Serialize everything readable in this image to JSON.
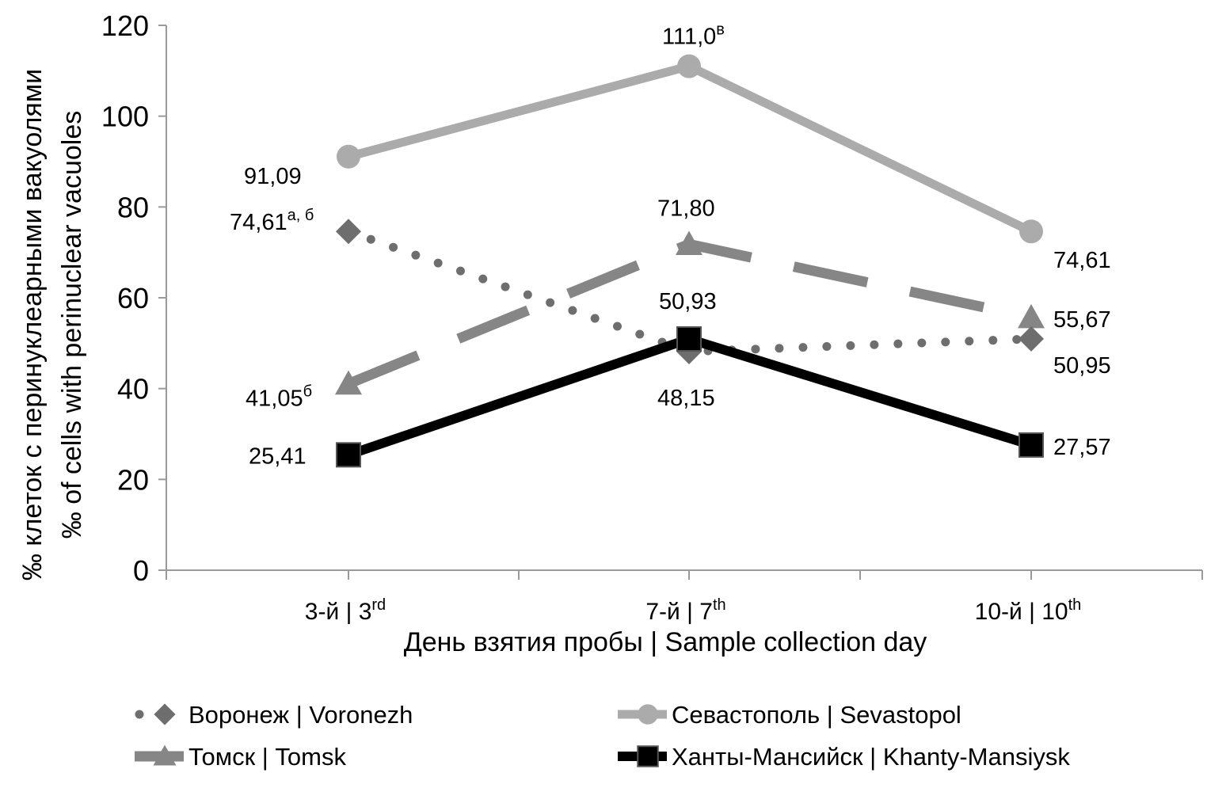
{
  "chart_data": {
    "type": "line",
    "title": "",
    "xlabel": "День взятия пробы | Sample collection day",
    "ylabel_lines": [
      "‰ клеток с перинуклеарными вакуолями",
      "‰ of cells with perinuclear vacuoles"
    ],
    "ylim": [
      0,
      120
    ],
    "yticks": [
      0,
      20,
      40,
      60,
      80,
      100,
      120
    ],
    "grid": false,
    "legend_position": "bottom",
    "categories": [
      {
        "main": "3-й | 3",
        "sup": "rd"
      },
      {
        "main": "7-й | 7",
        "sup": "th"
      },
      {
        "main": "10-й | 10",
        "sup": "th"
      }
    ],
    "series": [
      {
        "name": "Воронеж | Voronezh",
        "values": [
          74.61,
          48.15,
          50.95
        ],
        "color": "#6e6e6e",
        "line_style": "dotted",
        "marker": "diamond",
        "labels": [
          {
            "text": "74,61",
            "sup": "а, б"
          },
          {
            "text": "48,15",
            "sup": ""
          },
          {
            "text": "50,95",
            "sup": ""
          }
        ]
      },
      {
        "name": "Севастополь | Sevastopol",
        "values": [
          91.09,
          111.0,
          74.61
        ],
        "color": "#ababab",
        "line_style": "solid",
        "marker": "circle",
        "labels": [
          {
            "text": "91,09",
            "sup": ""
          },
          {
            "text": "111,0",
            "sup": "в"
          },
          {
            "text": "74,61",
            "sup": ""
          }
        ]
      },
      {
        "name": "Томск | Tomsk",
        "values": [
          41.05,
          71.8,
          55.67
        ],
        "color": "#868686",
        "line_style": "dashed",
        "marker": "triangle",
        "labels": [
          {
            "text": "41,05",
            "sup": "б"
          },
          {
            "text": "71,80",
            "sup": ""
          },
          {
            "text": "55,67",
            "sup": ""
          }
        ]
      },
      {
        "name": "Ханты-Мансийск | Khanty-Mansiysk",
        "values": [
          25.41,
          50.93,
          27.57
        ],
        "color": "#000000",
        "line_style": "solid",
        "marker": "square",
        "labels": [
          {
            "text": "25,41",
            "sup": ""
          },
          {
            "text": "50,93",
            "sup": ""
          },
          {
            "text": "27,57",
            "sup": ""
          }
        ]
      }
    ]
  }
}
